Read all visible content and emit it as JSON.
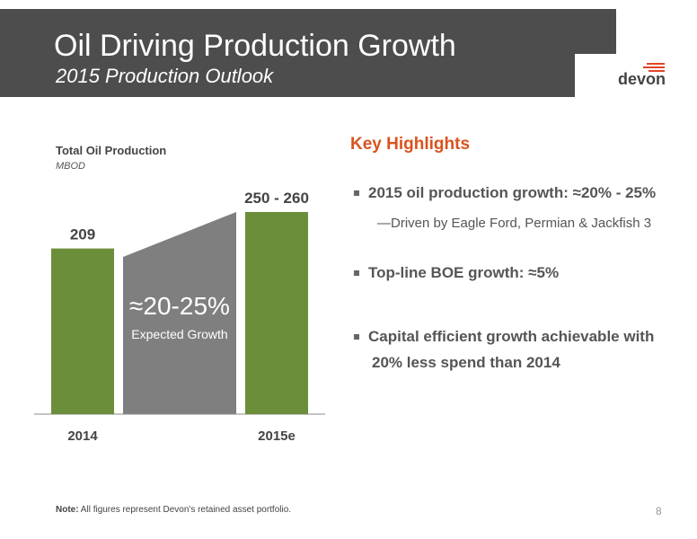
{
  "header": {
    "title": "Oil Driving Production Growth",
    "subtitle": "2015 Production Outlook",
    "logo": "devon"
  },
  "chart_data": {
    "type": "bar",
    "title": "Total Oil Production",
    "subtitle": "MBOD",
    "categories": [
      "2014",
      "2015e"
    ],
    "values": [
      209,
      255
    ],
    "value_labels": [
      "209",
      "250 - 260"
    ],
    "color": "#6b8e3a",
    "annotation_title": "≈20-25%",
    "annotation": "Expected Growth"
  },
  "highlights": {
    "heading": "Key Highlights",
    "bullets": [
      "2015 oil production growth: ≈20% - 25%",
      "Top-line BOE growth: ≈5%",
      "Capital efficient growth achievable with",
      "20% less spend than 2014"
    ],
    "sub_bullet": "—Driven by Eagle Ford, Permian & Jackfish 3"
  },
  "footer": {
    "note_label": "Note:",
    "note": "All figures represent Devon's retained asset portfolio.",
    "page": "8"
  }
}
